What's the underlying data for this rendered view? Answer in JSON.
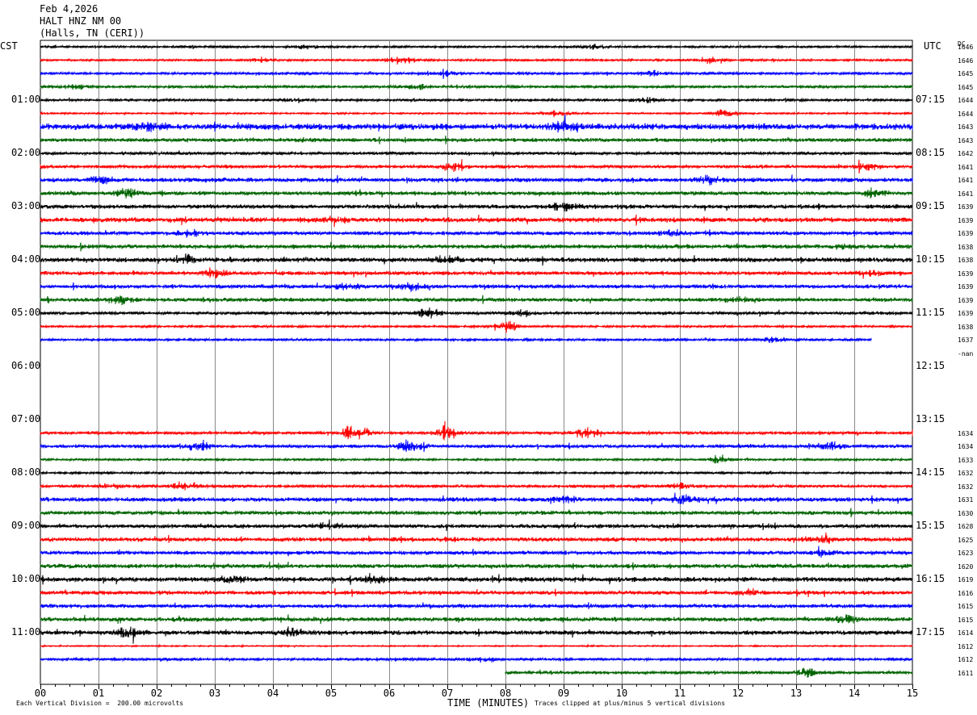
{
  "header": {
    "date": "Feb 4,2026",
    "station": "HALT HNZ NM 00",
    "location": "(Halls, TN (CERI))"
  },
  "left_tz": "CST",
  "right_tz": "UTC",
  "dc_header": "DC",
  "left_times": [
    "01:00",
    "02:00",
    "03:00",
    "04:00",
    "05:00",
    "06:00",
    "07:00",
    "08:00",
    "09:00",
    "10:00",
    "11:00"
  ],
  "right_times": [
    "07:15",
    "08:15",
    "09:15",
    "10:15",
    "11:15",
    "12:15",
    "13:15",
    "14:15",
    "15:15",
    "16:15",
    "17:15"
  ],
  "x_ticks": [
    "00",
    "01",
    "02",
    "03",
    "04",
    "05",
    "06",
    "07",
    "08",
    "09",
    "10",
    "11",
    "12",
    "13",
    "14",
    "15"
  ],
  "x_label": "TIME (MINUTES)",
  "footer": {
    "left": "Each Vertical Division =  200.00 microvolts",
    "right": "Traces clipped at plus/minus 5 vertical divisions"
  },
  "colors": {
    "black": "#000000",
    "red": "#ff0000",
    "blue": "#0000ff",
    "green": "#006400",
    "grid": "#888888"
  },
  "chart_data": {
    "type": "line",
    "title": "HALT HNZ NM 00",
    "xlabel": "TIME (MINUTES)",
    "xlim": [
      0,
      15
    ],
    "trace_colors": [
      "black",
      "red",
      "blue",
      "green"
    ],
    "traces": [
      {
        "dc": "1646",
        "amp": 1,
        "events": [
          [
            4.5,
            2
          ],
          [
            9.5,
            2
          ]
        ]
      },
      {
        "dc": "1646",
        "amp": 1,
        "events": [
          [
            3.8,
            2
          ],
          [
            6.2,
            3
          ],
          [
            11.5,
            2
          ]
        ]
      },
      {
        "dc": "1645",
        "amp": 1.2,
        "events": [
          [
            7.0,
            2
          ],
          [
            10.5,
            2
          ]
        ]
      },
      {
        "dc": "1645",
        "amp": 1.3,
        "events": [
          [
            0.6,
            2
          ],
          [
            6.5,
            2
          ]
        ]
      },
      {
        "dc": "1644",
        "amp": 1.1,
        "events": [
          [
            4.4,
            2
          ],
          [
            10.4,
            2
          ]
        ]
      },
      {
        "dc": "1644",
        "amp": 0.8,
        "events": [
          [
            8.9,
            3
          ],
          [
            11.8,
            3
          ]
        ]
      },
      {
        "dc": "1643",
        "amp": 3.2,
        "events": [
          [
            1.9,
            4
          ],
          [
            9.0,
            3
          ]
        ]
      },
      {
        "dc": "1643",
        "amp": 2.0,
        "events": []
      },
      {
        "dc": "1642",
        "amp": 1.5,
        "events": []
      },
      {
        "dc": "1641",
        "amp": 1.6,
        "events": [
          [
            7.1,
            3
          ],
          [
            14.2,
            3
          ]
        ]
      },
      {
        "dc": "1641",
        "amp": 2.2,
        "events": [
          [
            1.1,
            3
          ],
          [
            11.5,
            3
          ]
        ]
      },
      {
        "dc": "1641",
        "amp": 2.0,
        "events": [
          [
            1.5,
            3
          ],
          [
            14.3,
            3
          ]
        ]
      },
      {
        "dc": "1639",
        "amp": 2.2,
        "events": [
          [
            9.0,
            3
          ]
        ]
      },
      {
        "dc": "1639",
        "amp": 2.5,
        "events": [
          [
            5.1,
            2
          ]
        ]
      },
      {
        "dc": "1639",
        "amp": 2.0,
        "events": [
          [
            2.6,
            3
          ],
          [
            10.9,
            2
          ]
        ]
      },
      {
        "dc": "1638",
        "amp": 2.2,
        "events": [
          [
            13.9,
            2
          ]
        ]
      },
      {
        "dc": "1638",
        "amp": 2.4,
        "events": [
          [
            2.5,
            3
          ],
          [
            7.0,
            3
          ]
        ]
      },
      {
        "dc": "1639",
        "amp": 2.0,
        "events": [
          [
            3.0,
            4
          ],
          [
            14.3,
            2
          ]
        ]
      },
      {
        "dc": "1639",
        "amp": 2.0,
        "events": [
          [
            5.3,
            3
          ],
          [
            6.4,
            3
          ]
        ]
      },
      {
        "dc": "1639",
        "amp": 2.0,
        "events": [
          [
            1.4,
            3
          ],
          [
            12.0,
            2
          ]
        ]
      },
      {
        "dc": "1639",
        "amp": 1.5,
        "events": [
          [
            6.7,
            3
          ],
          [
            8.3,
            2
          ]
        ]
      },
      {
        "dc": "1638",
        "amp": 1.0,
        "events": [
          [
            8.0,
            4
          ]
        ]
      },
      {
        "dc": "1637",
        "amp": 1.1,
        "events": [
          [
            12.6,
            2
          ]
        ],
        "end": 14.3
      },
      {
        "dc": "-nan",
        "amp": 0,
        "events": []
      },
      {
        "dc": "",
        "amp": 0,
        "events": []
      },
      {
        "dc": "",
        "amp": 0,
        "events": []
      },
      {
        "dc": "",
        "amp": 0,
        "events": []
      },
      {
        "dc": "",
        "amp": 0,
        "events": []
      },
      {
        "dc": "",
        "amp": 0,
        "events": []
      },
      {
        "dc": "1634",
        "amp": 1.5,
        "events": [
          [
            5.4,
            6
          ],
          [
            7.0,
            5
          ],
          [
            9.4,
            5
          ]
        ],
        "start": 0.0
      },
      {
        "dc": "1634",
        "amp": 1.8,
        "events": [
          [
            2.7,
            4
          ],
          [
            6.4,
            5
          ],
          [
            13.6,
            3
          ]
        ]
      },
      {
        "dc": "1633",
        "amp": 1.0,
        "events": [
          [
            11.7,
            3
          ]
        ]
      },
      {
        "dc": "1632",
        "amp": 1.0,
        "events": []
      },
      {
        "dc": "1632",
        "amp": 1.4,
        "events": [
          [
            1.2,
            2
          ],
          [
            2.5,
            3
          ],
          [
            11.0,
            2
          ]
        ]
      },
      {
        "dc": "1631",
        "amp": 2.2,
        "events": [
          [
            11.1,
            3
          ],
          [
            9.0,
            2
          ]
        ]
      },
      {
        "dc": "1630",
        "amp": 2.0,
        "events": []
      },
      {
        "dc": "1628",
        "amp": 2.0,
        "events": [
          [
            4.9,
            2
          ]
        ]
      },
      {
        "dc": "1625",
        "amp": 2.2,
        "events": [
          [
            13.5,
            2
          ]
        ]
      },
      {
        "dc": "1623",
        "amp": 2.0,
        "events": [
          [
            13.5,
            2
          ]
        ]
      },
      {
        "dc": "1620",
        "amp": 2.2,
        "events": []
      },
      {
        "dc": "1619",
        "amp": 2.5,
        "events": [
          [
            3.3,
            3
          ],
          [
            5.8,
            3
          ]
        ]
      },
      {
        "dc": "1616",
        "amp": 2.0,
        "events": [
          [
            12.2,
            2
          ]
        ]
      },
      {
        "dc": "1615",
        "amp": 2.0,
        "events": []
      },
      {
        "dc": "1615",
        "amp": 2.2,
        "events": [
          [
            13.8,
            3
          ]
        ]
      },
      {
        "dc": "1614",
        "amp": 2.3,
        "events": [
          [
            1.5,
            4
          ],
          [
            4.3,
            3
          ]
        ]
      },
      {
        "dc": "1612",
        "amp": 0.6,
        "events": []
      },
      {
        "dc": "1612",
        "amp": 1.3,
        "events": [
          [
            7.6,
            2
          ]
        ]
      },
      {
        "dc": "1611",
        "amp": 1.6,
        "events": [
          [
            13.2,
            3
          ]
        ],
        "start": 8.0
      }
    ]
  }
}
